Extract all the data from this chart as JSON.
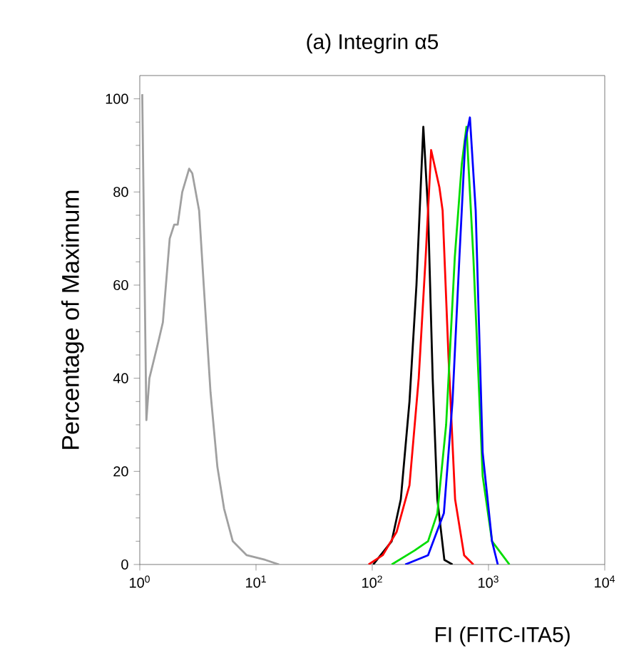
{
  "chart_data": {
    "type": "line",
    "title": "(a) Integrin α5",
    "xlabel": "FI (FITC-ITA5)",
    "ylabel": "Percentage of Maximum",
    "log": "x",
    "xlim": [
      1,
      10000
    ],
    "ylim": [
      0,
      105
    ],
    "xticks": [
      {
        "value": 1,
        "label": "10$^{0}$"
      },
      {
        "value": 10,
        "label": "10$^{1}$"
      },
      {
        "value": 100,
        "label": "10$^{2}$"
      },
      {
        "value": 1000,
        "label": "10$^{3}$"
      },
      {
        "value": 10000,
        "label": "10$^{4}$"
      }
    ],
    "yticks": [
      0,
      20,
      40,
      60,
      80,
      100
    ],
    "grid": false,
    "marker": "none",
    "line_style": "solid",
    "series": [
      {
        "color": "#a0a0a0",
        "x": [
          1.05,
          1.14,
          1.21,
          1.45,
          1.58,
          1.81,
          1.98,
          2.12,
          2.32,
          2.66,
          2.83,
          3.24,
          3.55,
          4.06,
          4.65,
          5.31,
          6.31,
          8.32,
          12.0,
          15.8
        ],
        "values": [
          101,
          31,
          40,
          48,
          52,
          70,
          73,
          73,
          80,
          85,
          84,
          76,
          60,
          37,
          21,
          12,
          5,
          2,
          1,
          0
        ]
      },
      {
        "color": "#000000",
        "x": [
          102,
          147,
          176,
          209,
          240,
          275,
          302,
          331,
          363,
          417,
          490
        ],
        "values": [
          0,
          5,
          14,
          35,
          60,
          94,
          76,
          40,
          14,
          1,
          0
        ]
      },
      {
        "color": "#ff0000",
        "x": [
          93,
          123,
          162,
          209,
          251,
          288,
          321,
          378,
          403,
          452,
          516,
          617,
          741
        ],
        "values": [
          0,
          2,
          7,
          17,
          40,
          66,
          89,
          81,
          76,
          45,
          14,
          2,
          0
        ]
      },
      {
        "color": "#00dd00",
        "x": [
          147,
          231,
          302,
          363,
          432,
          513,
          589,
          646,
          741,
          891,
          1072,
          1318,
          1514
        ],
        "values": [
          0,
          3,
          5,
          11,
          30,
          66,
          86,
          94,
          66,
          19,
          5,
          2,
          0
        ]
      },
      {
        "color": "#0000ff",
        "x": [
          192,
          302,
          413,
          490,
          562,
          631,
          692,
          776,
          891,
          1072,
          1202
        ],
        "values": [
          0,
          2,
          11,
          35,
          66,
          91,
          96,
          76,
          24,
          5,
          0
        ]
      }
    ]
  }
}
